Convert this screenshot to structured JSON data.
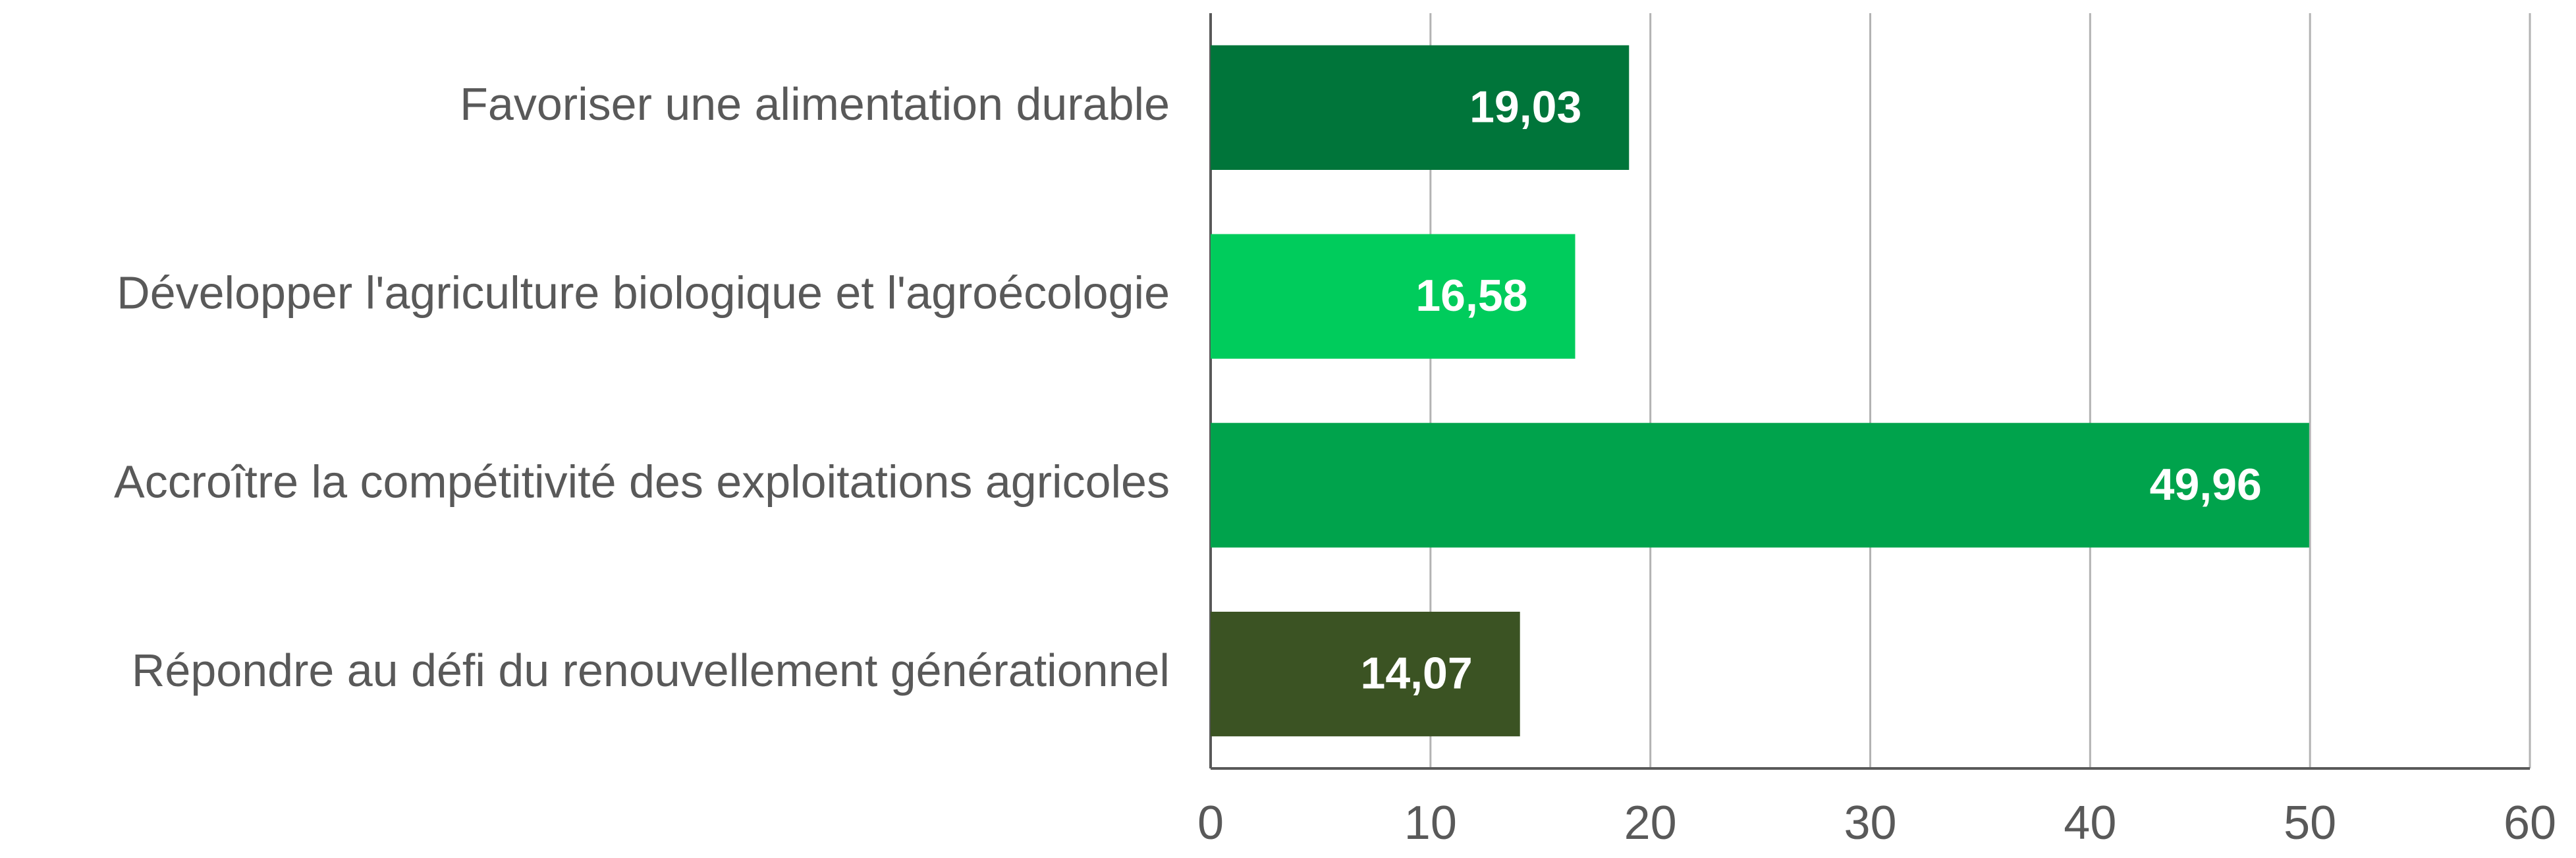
{
  "chart_data": {
    "type": "barh",
    "categories": [
      "Favoriser une alimentation durable",
      "Développer l'agriculture biologique et l'agroécologie",
      "Accroître la compétitivité des exploitations agricoles",
      "Répondre au défi du renouvellement générationnel"
    ],
    "values": [
      19.03,
      16.58,
      49.96,
      14.07
    ],
    "value_labels": [
      "19,03",
      "16,58",
      "49,96",
      "14,07"
    ],
    "colors": [
      "#00753a",
      "#00cc5c",
      "#00a34c",
      "#3b5323"
    ],
    "xlim": [
      0,
      60
    ],
    "xticks": [
      0,
      10,
      20,
      30,
      40,
      50,
      60
    ],
    "grid": true
  }
}
